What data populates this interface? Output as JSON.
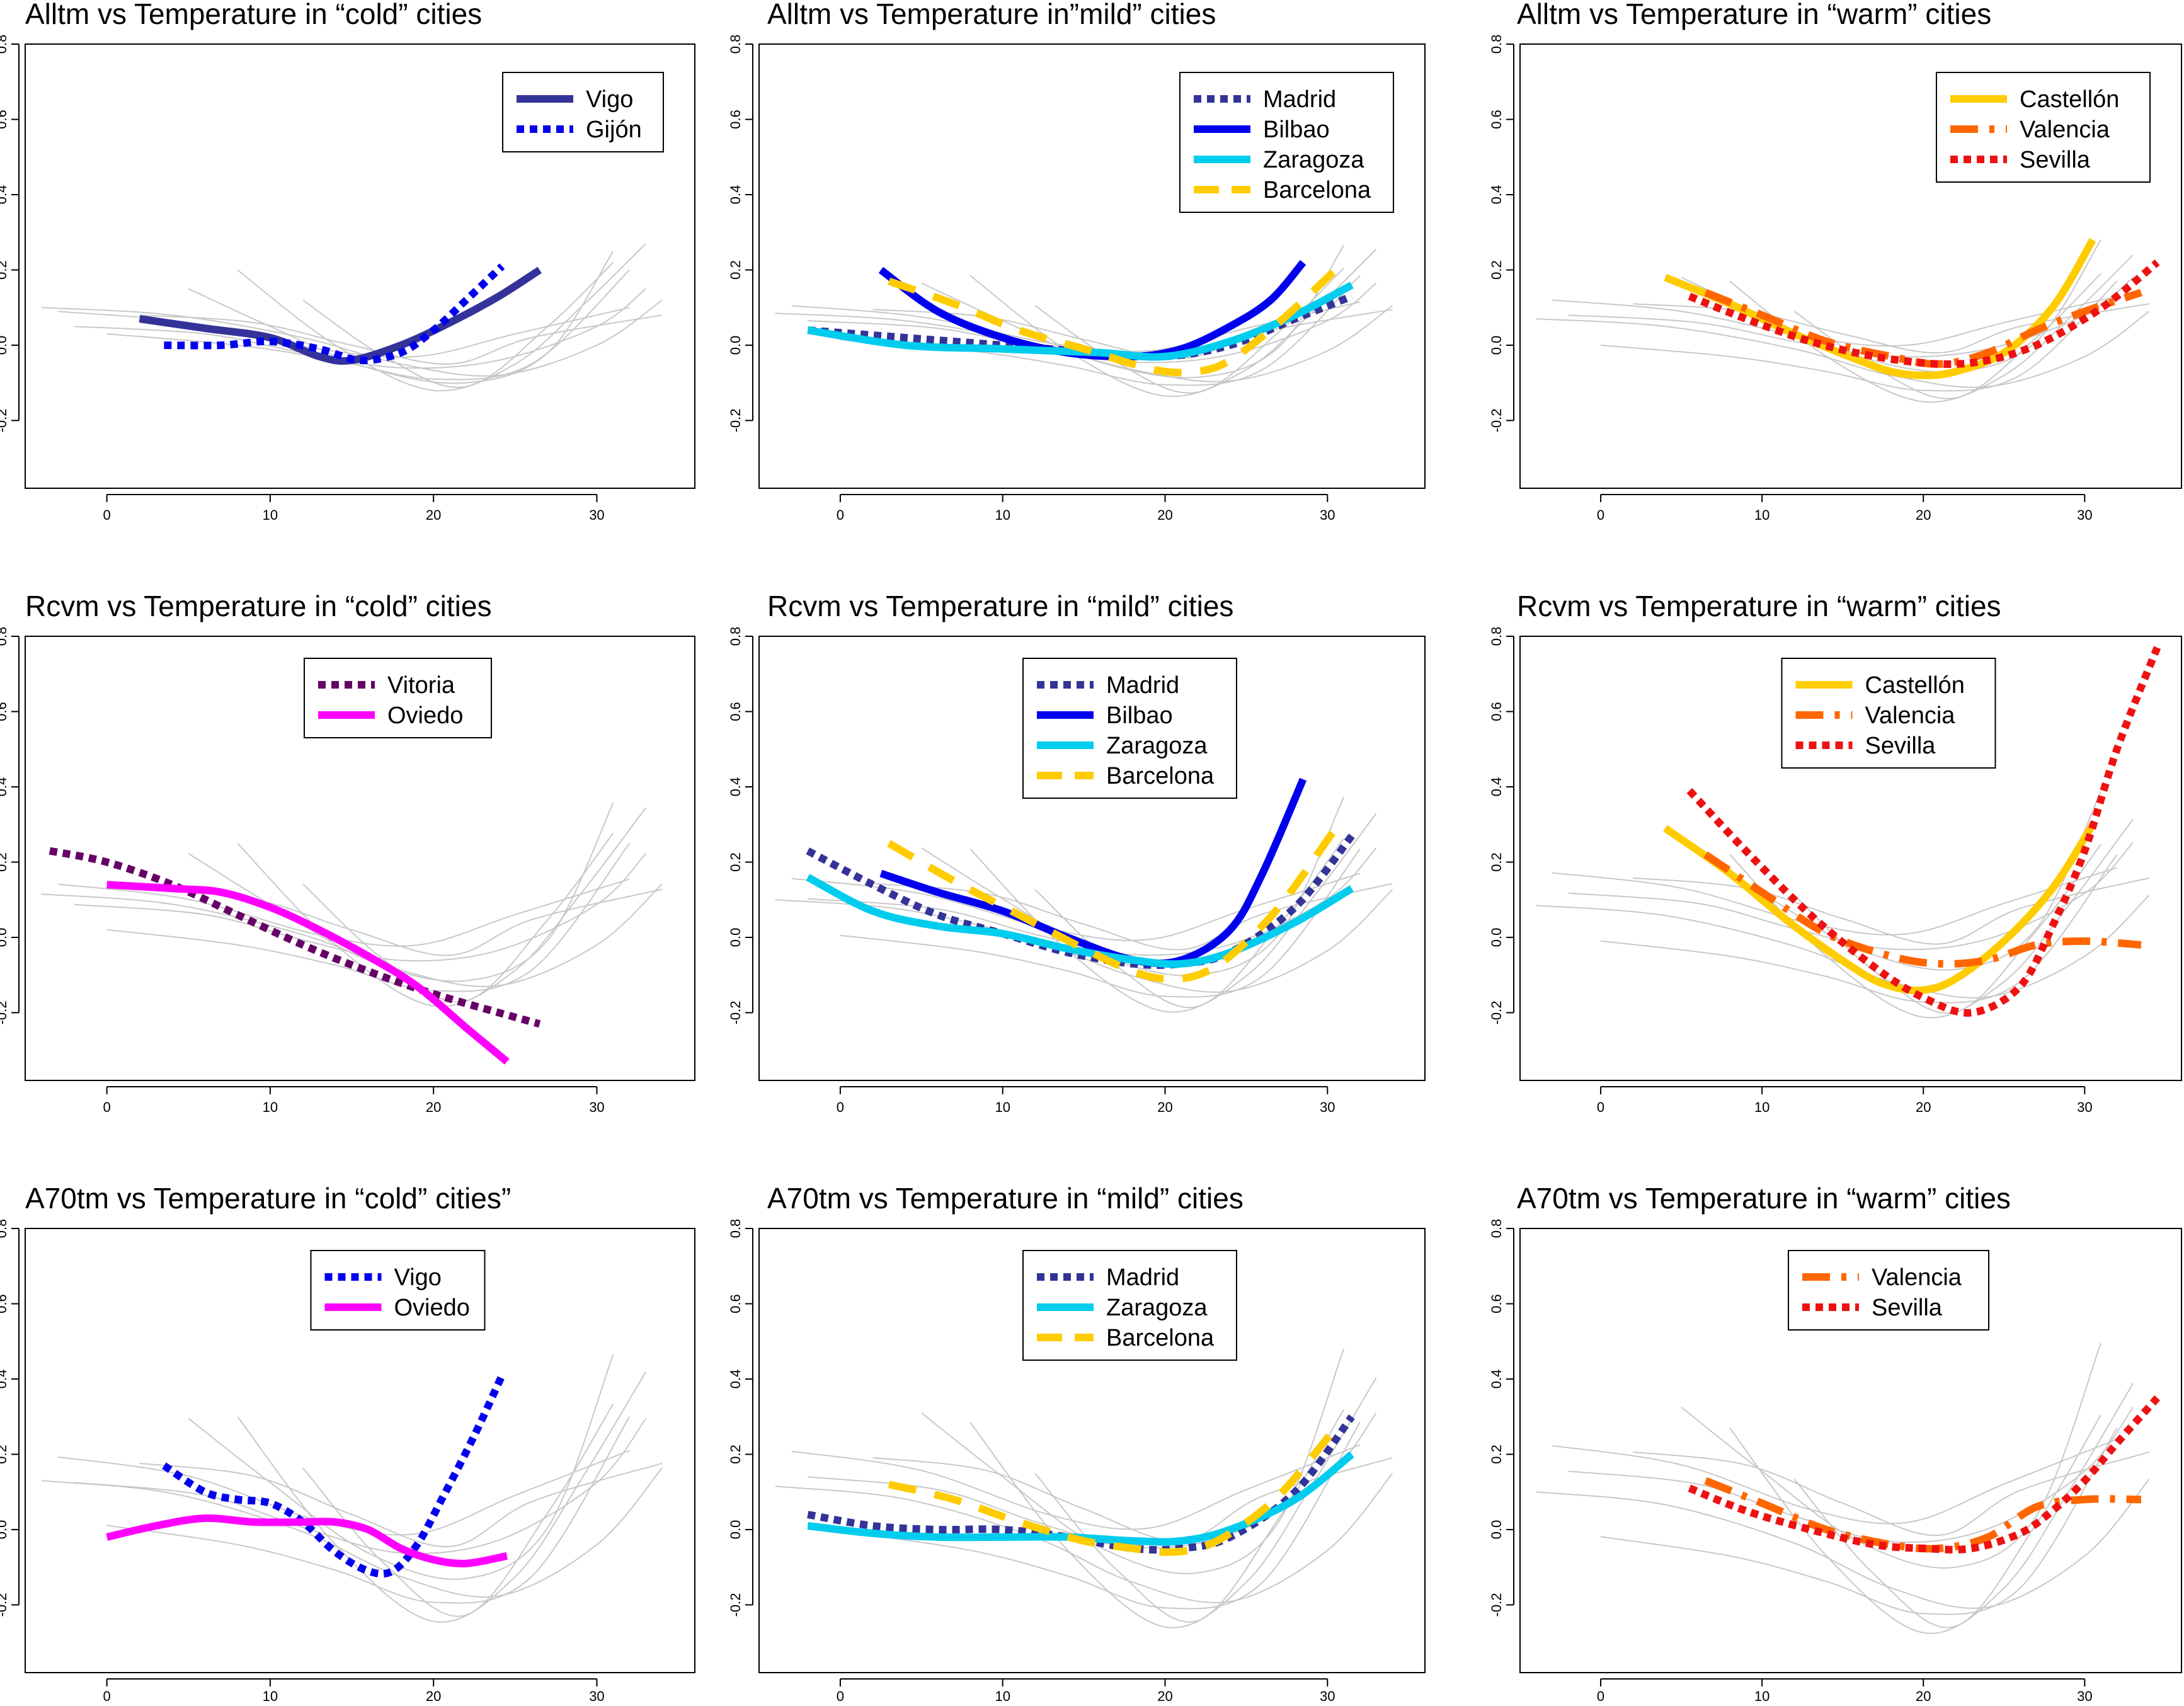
{
  "colors": {
    "Vigo": "#333399",
    "Gijon": "#0000ee",
    "Madrid": "#333399",
    "Bilbao": "#0000ee",
    "Zaragoza": "#00ccee",
    "Barcelona": "#ffcc00",
    "Castellon": "#ffcc00",
    "Valencia": "#ff6600",
    "Sevilla": "#ee1111",
    "Vitoria": "#660066",
    "Oviedo": "#ff00ff",
    "VigoA70": "#0000ee",
    "background": "#c8c8c8"
  },
  "chart_data": [
    {
      "type": "line",
      "title": "Alltm vs Temperature in “cold” cities",
      "xlim": [
        -5,
        36
      ],
      "ylim": [
        -0.38,
        0.8
      ],
      "xticks": [
        "0",
        "10",
        "20",
        "30"
      ],
      "yticks": [
        "-0.2",
        "0.0",
        "0.2",
        "0.4",
        "0.6",
        "0.8"
      ],
      "legend_position": "top-right",
      "series": [
        {
          "name": "Vigo",
          "style": "solid",
          "color_key": "Vigo",
          "x": [
            2,
            6,
            10,
            13,
            15,
            18,
            21,
            24,
            26.5
          ],
          "y": [
            0.07,
            0.045,
            0.02,
            -0.03,
            -0.04,
            0.0,
            0.06,
            0.13,
            0.2
          ]
        },
        {
          "name": "Gijón",
          "style": "dotted",
          "color_key": "Gijon",
          "x": [
            3.5,
            7,
            10,
            13,
            15.5,
            18,
            20,
            22,
            24.2
          ],
          "y": [
            0.0,
            0.0,
            0.01,
            -0.01,
            -0.04,
            -0.02,
            0.04,
            0.12,
            0.21
          ]
        }
      ]
    },
    {
      "type": "line",
      "title": "Alltm vs Temperature in”mild” cities",
      "xlim": [
        -5,
        36
      ],
      "ylim": [
        -0.38,
        0.8
      ],
      "xticks": [
        "0",
        "10",
        "20",
        "30"
      ],
      "yticks": [
        "-0.2",
        "0.0",
        "0.2",
        "0.4",
        "0.6",
        "0.8"
      ],
      "legend_position": "top-right",
      "series": [
        {
          "name": "Madrid",
          "style": "dotted",
          "color_key": "Madrid",
          "x": [
            -2,
            4,
            10,
            16,
            20,
            24,
            28,
            31.5
          ],
          "y": [
            0.04,
            0.02,
            0.0,
            -0.02,
            -0.03,
            0.0,
            0.07,
            0.13
          ]
        },
        {
          "name": "Bilbao",
          "style": "solid",
          "color_key": "Bilbao",
          "x": [
            2.5,
            6,
            10,
            14,
            18,
            21,
            24,
            26.5,
            28.5
          ],
          "y": [
            0.2,
            0.09,
            0.02,
            -0.02,
            -0.03,
            -0.01,
            0.05,
            0.12,
            0.22
          ]
        },
        {
          "name": "Zaragoza",
          "style": "solid",
          "color_key": "Zaragoza",
          "x": [
            -2,
            4,
            10,
            16,
            20,
            24,
            28,
            31.5
          ],
          "y": [
            0.04,
            0.0,
            -0.01,
            -0.02,
            -0.03,
            0.01,
            0.08,
            0.16
          ]
        },
        {
          "name": "Barcelona",
          "style": "dashed",
          "color_key": "Barcelona",
          "x": [
            3,
            7,
            11,
            15,
            18,
            20,
            22,
            24,
            27,
            30.5
          ],
          "y": [
            0.17,
            0.11,
            0.04,
            -0.01,
            -0.05,
            -0.07,
            -0.07,
            -0.04,
            0.06,
            0.2
          ]
        }
      ]
    },
    {
      "type": "line",
      "title": "Alltm vs Temperature in “warm” cities",
      "xlim": [
        -5,
        36
      ],
      "ylim": [
        -0.38,
        0.8
      ],
      "xticks": [
        "0",
        "10",
        "20",
        "30"
      ],
      "yticks": [
        "-0.2",
        "0.0",
        "0.2",
        "0.4",
        "0.6",
        "0.8"
      ],
      "legend_position": "top-right",
      "series": [
        {
          "name": "Castellón",
          "style": "solid",
          "color_key": "Castellon",
          "x": [
            4,
            8,
            12,
            16,
            18,
            20,
            22,
            25,
            28,
            30.5
          ],
          "y": [
            0.18,
            0.11,
            0.03,
            -0.04,
            -0.07,
            -0.08,
            -0.07,
            -0.02,
            0.1,
            0.28
          ]
        },
        {
          "name": "Valencia",
          "style": "dashdot",
          "color_key": "Valencia",
          "x": [
            6.5,
            10,
            14,
            18,
            21,
            24,
            27,
            30,
            33.5
          ],
          "y": [
            0.14,
            0.08,
            0.01,
            -0.03,
            -0.05,
            -0.02,
            0.04,
            0.09,
            0.14
          ]
        },
        {
          "name": "Sevilla",
          "style": "dotted",
          "color_key": "Sevilla",
          "x": [
            5.5,
            9,
            13,
            17,
            21,
            24,
            27,
            30,
            32,
            34.5
          ],
          "y": [
            0.13,
            0.07,
            0.01,
            -0.03,
            -0.05,
            -0.04,
            0.0,
            0.07,
            0.13,
            0.22
          ]
        }
      ]
    },
    {
      "type": "line",
      "title": "Rcvm vs Temperature in “cold” cities",
      "xlim": [
        -5,
        36
      ],
      "ylim": [
        -0.38,
        0.8
      ],
      "xticks": [
        "0",
        "10",
        "20",
        "30"
      ],
      "yticks": [
        "-0.2",
        "0.0",
        "0.2",
        "0.4",
        "0.6",
        "0.8"
      ],
      "legend_position": "top-center",
      "series": [
        {
          "name": "Vitoria",
          "style": "dotted",
          "color_key": "Vitoria",
          "x": [
            -3.5,
            0,
            4,
            8,
            12,
            16,
            20,
            24,
            26.5
          ],
          "y": [
            0.23,
            0.2,
            0.14,
            0.06,
            -0.02,
            -0.09,
            -0.15,
            -0.2,
            -0.23
          ]
        },
        {
          "name": "Oviedo",
          "style": "solid",
          "color_key": "Oviedo",
          "x": [
            0,
            4,
            7,
            10,
            13,
            16,
            19,
            22,
            24.5
          ],
          "y": [
            0.14,
            0.13,
            0.12,
            0.08,
            0.02,
            -0.05,
            -0.13,
            -0.24,
            -0.33
          ]
        }
      ]
    },
    {
      "type": "line",
      "title": "Rcvm vs Temperature in “mild” cities",
      "xlim": [
        -5,
        36
      ],
      "ylim": [
        -0.38,
        0.8
      ],
      "xticks": [
        "0",
        "10",
        "20",
        "30"
      ],
      "yticks": [
        "-0.2",
        "0.0",
        "0.2",
        "0.4",
        "0.6",
        "0.8"
      ],
      "legend_position": "top-center",
      "series": [
        {
          "name": "Madrid",
          "style": "dotted",
          "color_key": "Madrid",
          "x": [
            -2,
            2,
            6,
            10,
            14,
            18,
            21,
            24,
            28,
            31.5
          ],
          "y": [
            0.23,
            0.14,
            0.06,
            0.01,
            -0.04,
            -0.07,
            -0.07,
            -0.04,
            0.08,
            0.27
          ]
        },
        {
          "name": "Bilbao",
          "style": "solid",
          "color_key": "Bilbao",
          "x": [
            2.5,
            6,
            10,
            14,
            18,
            21,
            24,
            26,
            28.5
          ],
          "y": [
            0.17,
            0.12,
            0.07,
            0.0,
            -0.06,
            -0.06,
            0.02,
            0.17,
            0.42
          ]
        },
        {
          "name": "Zaragoza",
          "style": "solid",
          "color_key": "Zaragoza",
          "x": [
            -2,
            2,
            6,
            10,
            14,
            18,
            21,
            24,
            28,
            31.5
          ],
          "y": [
            0.16,
            0.07,
            0.03,
            0.01,
            -0.03,
            -0.06,
            -0.07,
            -0.04,
            0.04,
            0.13
          ]
        },
        {
          "name": "Barcelona",
          "style": "dashed",
          "color_key": "Barcelona",
          "x": [
            3,
            7,
            11,
            15,
            18,
            20,
            22,
            24,
            27,
            30.5
          ],
          "y": [
            0.25,
            0.15,
            0.06,
            -0.03,
            -0.09,
            -0.11,
            -0.1,
            -0.05,
            0.08,
            0.29
          ]
        }
      ]
    },
    {
      "type": "line",
      "title": "Rcvm vs Temperature in “warm” cities",
      "xlim": [
        -5,
        36
      ],
      "ylim": [
        -0.38,
        0.8
      ],
      "xticks": [
        "0",
        "10",
        "20",
        "30"
      ],
      "yticks": [
        "-0.2",
        "0.0",
        "0.2",
        "0.4",
        "0.6",
        "0.8"
      ],
      "legend_position": "top-center",
      "series": [
        {
          "name": "Castellón",
          "style": "solid",
          "color_key": "Castellon",
          "x": [
            4,
            8,
            12,
            16,
            18,
            20,
            22,
            25,
            28,
            30.5
          ],
          "y": [
            0.29,
            0.17,
            0.03,
            -0.09,
            -0.13,
            -0.14,
            -0.11,
            -0.01,
            0.13,
            0.3
          ]
        },
        {
          "name": "Valencia",
          "style": "dashdot",
          "color_key": "Valencia",
          "x": [
            6.5,
            10,
            14,
            18,
            21,
            24,
            27,
            30,
            33.5
          ],
          "y": [
            0.22,
            0.12,
            0.01,
            -0.05,
            -0.07,
            -0.06,
            -0.02,
            -0.01,
            -0.02
          ]
        },
        {
          "name": "Sevilla",
          "style": "dotted",
          "color_key": "Sevilla",
          "x": [
            5.5,
            9,
            13,
            17,
            20,
            23,
            26,
            28,
            30,
            32,
            34.5
          ],
          "y": [
            0.39,
            0.23,
            0.06,
            -0.08,
            -0.16,
            -0.2,
            -0.13,
            0.03,
            0.23,
            0.5,
            0.77
          ]
        }
      ]
    },
    {
      "type": "line",
      "title": "A70tm vs Temperature in “cold” cities”",
      "xlim": [
        -5,
        36
      ],
      "ylim": [
        -0.38,
        0.8
      ],
      "xticks": [
        "0",
        "10",
        "20",
        "30"
      ],
      "yticks": [
        "-0.2",
        "0.0",
        "0.2",
        "0.4",
        "0.6",
        "0.8"
      ],
      "legend_position": "top-center",
      "series": [
        {
          "name": "Vigo",
          "style": "dotted",
          "color_key": "VigoA70",
          "x": [
            3.5,
            6,
            8,
            10,
            12,
            14,
            16,
            17.5,
            19,
            20.5,
            22.5,
            24.2
          ],
          "y": [
            0.17,
            0.1,
            0.08,
            0.07,
            0.02,
            -0.06,
            -0.11,
            -0.11,
            -0.04,
            0.08,
            0.25,
            0.41
          ]
        },
        {
          "name": "Oviedo",
          "style": "solid",
          "color_key": "Oviedo",
          "x": [
            0,
            3,
            6,
            9,
            12,
            14,
            16,
            18,
            20,
            22,
            24.5
          ],
          "y": [
            -0.02,
            0.01,
            0.03,
            0.02,
            0.02,
            0.02,
            0.0,
            -0.05,
            -0.08,
            -0.09,
            -0.07
          ]
        }
      ]
    },
    {
      "type": "line",
      "title": "A70tm vs Temperature in “mild” cities",
      "xlim": [
        -5,
        36
      ],
      "ylim": [
        -0.38,
        0.8
      ],
      "xticks": [
        "0",
        "10",
        "20",
        "30"
      ],
      "yticks": [
        "-0.2",
        "0.0",
        "0.2",
        "0.4",
        "0.6",
        "0.8"
      ],
      "legend_position": "top-center",
      "series": [
        {
          "name": "Madrid",
          "style": "dotted",
          "color_key": "Madrid",
          "x": [
            -2,
            2,
            6,
            10,
            14,
            18,
            21,
            24,
            28,
            31.5
          ],
          "y": [
            0.04,
            0.01,
            0.0,
            0.0,
            -0.02,
            -0.05,
            -0.05,
            -0.02,
            0.1,
            0.3
          ]
        },
        {
          "name": "Zaragoza",
          "style": "solid",
          "color_key": "Zaragoza",
          "x": [
            -2,
            2,
            6,
            10,
            14,
            18,
            21,
            24,
            28,
            31.5
          ],
          "y": [
            0.01,
            -0.01,
            -0.02,
            -0.02,
            -0.02,
            -0.03,
            -0.03,
            0.0,
            0.08,
            0.2
          ]
        },
        {
          "name": "Barcelona",
          "style": "dashed",
          "color_key": "Barcelona",
          "x": [
            3,
            7,
            11,
            15,
            18,
            20,
            22,
            24,
            27,
            30.5
          ],
          "y": [
            0.12,
            0.08,
            0.02,
            -0.03,
            -0.05,
            -0.06,
            -0.05,
            -0.01,
            0.09,
            0.27
          ]
        }
      ]
    },
    {
      "type": "line",
      "title": "A70tm vs Temperature in “warm” cities",
      "xlim": [
        -5,
        36
      ],
      "ylim": [
        -0.38,
        0.8
      ],
      "xticks": [
        "0",
        "10",
        "20",
        "30"
      ],
      "yticks": [
        "-0.2",
        "0.0",
        "0.2",
        "0.4",
        "0.6",
        "0.8"
      ],
      "legend_position": "top-center",
      "series": [
        {
          "name": "Valencia",
          "style": "dashdot",
          "color_key": "Valencia",
          "x": [
            6.5,
            10,
            14,
            18,
            21,
            24,
            27,
            30,
            33.5
          ],
          "y": [
            0.13,
            0.07,
            0.0,
            -0.04,
            -0.05,
            -0.02,
            0.06,
            0.08,
            0.08
          ]
        },
        {
          "name": "Sevilla",
          "style": "dotted",
          "color_key": "Sevilla",
          "x": [
            5.5,
            9,
            13,
            17,
            20,
            23,
            26,
            28,
            30,
            32,
            34.5
          ],
          "y": [
            0.11,
            0.05,
            0.0,
            -0.04,
            -0.05,
            -0.05,
            -0.01,
            0.05,
            0.13,
            0.23,
            0.35
          ]
        }
      ]
    }
  ]
}
